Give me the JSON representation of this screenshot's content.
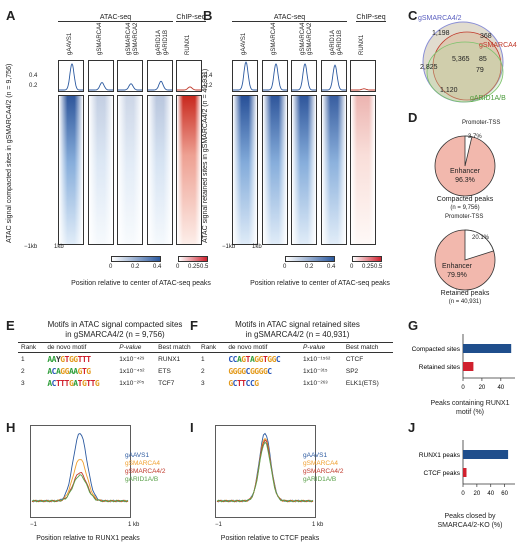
{
  "panels": {
    "A": {
      "letter": "A",
      "group_atac": "ATAC-seq",
      "group_chip": "ChIP-seq",
      "columns": [
        "gAAVS1",
        "gSMARCA4",
        "gSMARCA4\ngSMARCA2",
        "gARID1A\ngARID1B",
        "RUNX1"
      ],
      "yticks": [
        "0.4",
        "0.2"
      ],
      "row_label": "ATAC signal compacted sites in gSMARCA4/2 (n = 9,756)",
      "x_left": "−1kb",
      "x_right": "1kb",
      "cb_blue_ticks": [
        "0",
        "0.2",
        "0.4"
      ],
      "cb_red_ticks": [
        "0",
        "0.25",
        "0.5"
      ],
      "xlabel": "Position relative to center of ATAC-seq peaks",
      "profile_peaks": [
        0.42,
        0.12,
        0.1,
        0.14,
        0.05
      ]
    },
    "B": {
      "letter": "B",
      "group_atac": "ATAC-seq",
      "group_chip": "ChIP-seq",
      "columns": [
        "gAAVS1",
        "gSMARCA4",
        "gSMARCA4\ngSMARCA2",
        "gARID1A\ngARID1B",
        "RUNX1"
      ],
      "yticks": [
        "0.4",
        "0.2"
      ],
      "row_label": "ATAC signal retained sites in gSMARCA4/2 (n = 40,931)",
      "x_left": "−1kb",
      "x_right": "1kb",
      "cb_blue_ticks": [
        "0",
        "0.2",
        "0.4"
      ],
      "cb_red_ticks": [
        "0",
        "0.25",
        "0.5"
      ],
      "xlabel": "Position relative to center of ATAC-seq peaks",
      "profile_peaks": [
        0.45,
        0.42,
        0.42,
        0.4,
        0.02
      ]
    },
    "C": {
      "letter": "C",
      "label_a": "gSMARCA4/2",
      "label_b": "gSMARCA4",
      "label_c": "gARID1A/B",
      "n_1198": "1,198",
      "n_368": "368",
      "n_2825": "2,825",
      "n_5365": "5,365",
      "n_85": "85",
      "n_79": "79",
      "n_1120": "1,120",
      "colors": {
        "a": "#8a8fd6",
        "b": "#c0392b",
        "c": "#7bc36b"
      }
    },
    "D": {
      "letter": "D",
      "pie1": {
        "promoter_label": "Promoter-TSS",
        "promoter_pct": "3.7%",
        "enhancer_label": "Enhancer",
        "enhancer_pct": "96.3%",
        "caption": "Compacted peaks",
        "n": "(n = 9,756)",
        "promoter_frac": 0.037
      },
      "pie2": {
        "promoter_label": "Promoter-TSS",
        "promoter_pct": "20.1%",
        "enhancer_label": "Enhancer",
        "enhancer_pct": "79.9%",
        "caption": "Retained peaks",
        "n": "(n = 40,931)",
        "promoter_frac": 0.201
      },
      "colors": {
        "enhancer": "#f2b8ad",
        "promoter": "#ffffff"
      }
    },
    "E": {
      "letter": "E",
      "title_line1": "Motifs in ATAC signal compacted sites",
      "title_line2": "in gSMARCA4/2 (n = 9,756)",
      "headers": [
        "Rank",
        "de novo motif",
        "P-value",
        "Best match"
      ],
      "rows": [
        {
          "rank": "1",
          "motif": "AAYGTGGTTT",
          "pval": "1x10⁻⁴²⁹",
          "match": "RUNX1"
        },
        {
          "rank": "2",
          "motif": "ACAGGAAGTG",
          "pval": "1x10⁻⁴⁵²",
          "match": "ETS"
        },
        {
          "rank": "3",
          "motif": "ACTTTGATGTTG",
          "pval": "1x10⁻²⁰⁵",
          "match": "TCF7"
        }
      ]
    },
    "F": {
      "letter": "F",
      "title_line1": "Motifs in ATAC signal retained sites",
      "title_line2": "in gSMARCA4/2 (n = 40,931)",
      "headers": [
        "Rank",
        "de novo motif",
        "P-value",
        "Best match"
      ],
      "rows": [
        {
          "rank": "1",
          "motif": "CCAGTAGGTGGC",
          "pval": "1x10⁻¹⁵⁶²",
          "match": "CTCF"
        },
        {
          "rank": "2",
          "motif": "GGGGCGGGGC",
          "pval": "1x10⁻³¹⁵",
          "match": "SP2"
        },
        {
          "rank": "3",
          "motif": "GCTTCCG",
          "pval": "1x10⁻²⁶³",
          "match": "ELK1(ETS)"
        }
      ]
    },
    "G": {
      "letter": "G",
      "xlabel_line1": "Peaks containing RUNX1",
      "xlabel_line2": "motif (%)",
      "xticks": [
        "0",
        "20",
        "40"
      ]
    },
    "H": {
      "letter": "H",
      "legend": [
        "gAAVS1",
        "gSMARCA4",
        "gSMARCA4/2",
        "gARID1A/B"
      ],
      "x_left": "−1",
      "x_right": "1 kb",
      "xlabel": "Position relative to RUNX1 peaks",
      "colors": [
        "#2c5aa0",
        "#f0a030",
        "#c0392b",
        "#5aa04a"
      ]
    },
    "I": {
      "letter": "I",
      "legend": [
        "gAAVS1",
        "gSMARCA4",
        "gSMARCA4/2",
        "gARID1A/B"
      ],
      "x_left": "−1",
      "x_right": "1 kb",
      "xlabel": "Position relative to CTCF peaks",
      "colors": [
        "#2c5aa0",
        "#f0a030",
        "#c0392b",
        "#5aa04a"
      ]
    },
    "J": {
      "letter": "J",
      "xlabel_line1": "Peaks closed by",
      "xlabel_line2": "SMARCA4/2-KO (%)",
      "xticks": [
        "0",
        "20",
        "40",
        "60"
      ]
    }
  },
  "chart_data": [
    {
      "type": "bar",
      "panel": "G",
      "categories": [
        "Compacted sites",
        "Retained sites"
      ],
      "values": [
        51,
        11
      ],
      "colors": [
        "#1f4e8c",
        "#d0202e"
      ],
      "xlabel": "Peaks containing RUNX1 motif (%)",
      "xlim": [
        0,
        55
      ]
    },
    {
      "type": "bar",
      "panel": "J",
      "categories": [
        "RUNX1 peaks",
        "CTCF peaks"
      ],
      "values": [
        65,
        5
      ],
      "colors": [
        "#1f4e8c",
        "#d0202e"
      ],
      "xlabel": "Peaks closed by SMARCA4/2-KO (%)",
      "xlim": [
        0,
        75
      ]
    },
    {
      "type": "line",
      "panel": "H",
      "series": [
        {
          "name": "gAAVS1",
          "peak": 1.0
        },
        {
          "name": "gSMARCA4",
          "peak": 0.62
        },
        {
          "name": "gSMARCA4/2",
          "peak": 0.42
        },
        {
          "name": "gARID1A/B",
          "peak": 0.38
        }
      ],
      "xlabel": "Position relative to RUNX1 peaks"
    },
    {
      "type": "line",
      "panel": "I",
      "series": [
        {
          "name": "gAAVS1",
          "peak": 1.0
        },
        {
          "name": "gSMARCA4",
          "peak": 0.93
        },
        {
          "name": "gSMARCA4/2",
          "peak": 0.9
        },
        {
          "name": "gARID1A/B",
          "peak": 0.86
        }
      ],
      "xlabel": "Position relative to CTCF peaks"
    }
  ]
}
